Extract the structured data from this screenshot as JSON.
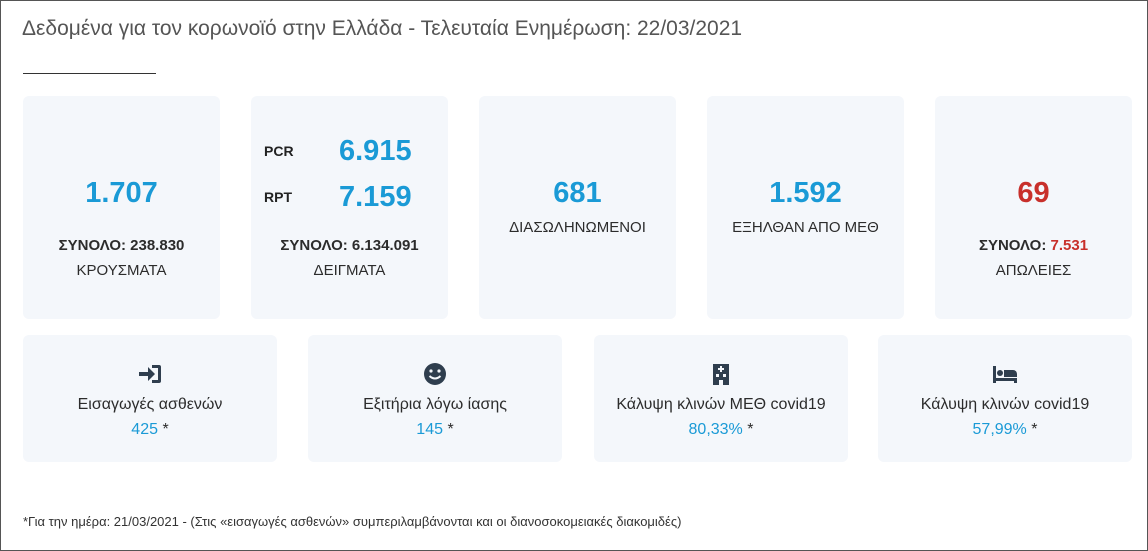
{
  "header": {
    "title": "Δεδομένα για τον κορωνοϊό στην Ελλάδα - Τελευταία Ενημέρωση: 22/03/2021"
  },
  "top_cards": [
    {
      "value": "1.707",
      "total_label": "ΣΥΝΟΛΟ:",
      "total_value": "238.830",
      "caption": "ΚΡΟΥΣΜΑΤΑ"
    },
    {
      "rows": [
        {
          "label": "PCR",
          "value": "6.915"
        },
        {
          "label": "RPT",
          "value": "7.159"
        }
      ],
      "total_label": "ΣΥΝΟΛΟ:",
      "total_value": "6.134.091",
      "caption": "ΔΕΙΓΜΑΤΑ"
    },
    {
      "value": "681",
      "caption": "ΔΙΑΣΩΛΗΝΩΜΕΝΟΙ"
    },
    {
      "value": "1.592",
      "caption": "ΕΞΗΛΘΑΝ ΑΠΟ ΜΕΘ"
    },
    {
      "value": "69",
      "total_label": "ΣΥΝΟΛΟ:",
      "total_value": "7.531",
      "caption": "ΑΠΩΛΕΙΕΣ"
    }
  ],
  "bottom_cards": [
    {
      "label": "Εισαγωγές ασθενών",
      "value": "425",
      "note": "*"
    },
    {
      "label": "Εξιτήρια λόγω ίασης",
      "value": "145",
      "note": "*"
    },
    {
      "label": "Κάλυψη κλινών ΜΕΘ covid19",
      "value": "80,33%",
      "note": "*"
    },
    {
      "label": "Κάλυψη κλινών covid19",
      "value": "57,99%",
      "note": "*"
    }
  ],
  "footnote": "*Για την ημέρα: 21/03/2021 - (Στις «εισαγωγές ασθενών» συμπεριλαμβάνονται και οι διανοσοκομειακές διακομιδές)"
}
